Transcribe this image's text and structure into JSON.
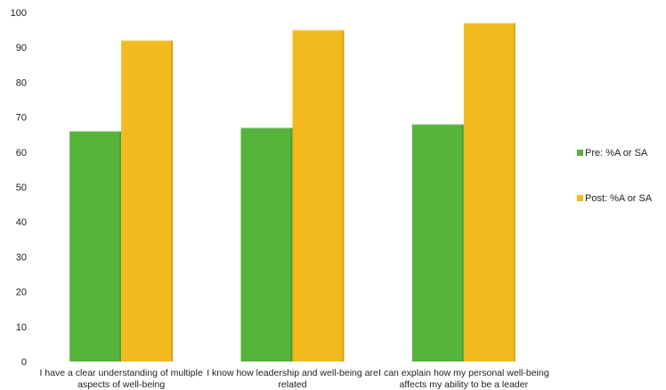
{
  "chart_data": {
    "type": "bar",
    "categories": [
      [
        "I have a clear understanding of multiple",
        "aspects of well-being"
      ],
      [
        "I know how leadership and well-being are",
        "related"
      ],
      [
        "I can explain how my personal well-being",
        "affects my ability to be a leader"
      ]
    ],
    "series": [
      {
        "name": "Pre: %A or SA",
        "color": "#56b33b",
        "values": [
          66,
          67,
          68
        ]
      },
      {
        "name": "Post: %A or SA",
        "color": "#f2ba1f",
        "values": [
          92,
          95,
          97
        ]
      }
    ],
    "yticks": [
      0,
      10,
      20,
      30,
      40,
      50,
      60,
      70,
      80,
      90,
      100
    ],
    "ylim": [
      0,
      100
    ],
    "grid": false,
    "legend_position": "right"
  }
}
